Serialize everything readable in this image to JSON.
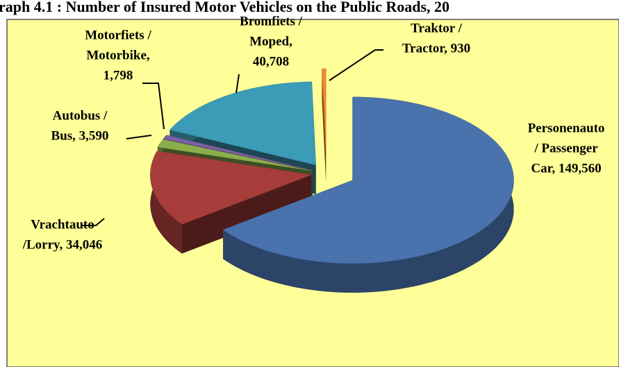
{
  "chart_data": {
    "type": "pie3d",
    "title": "raph 4.1 : Number of Insured Motor Vehicles on the Public Roads, 20",
    "labels": [
      [
        "Personenauto",
        "/ Passenger",
        "Car, 149,560"
      ],
      [
        "Vrachtauto",
        "/Lorry, 34,046"
      ],
      [
        "Autobus /",
        "Bus, 3,590"
      ],
      [
        "Motorfiets /",
        "Motorbike,",
        "1,798"
      ],
      [
        "Bromfiets /",
        "Moped,",
        "40,708"
      ],
      [
        "Traktor /",
        "Tractor, 930"
      ]
    ],
    "values": [
      149560,
      34046,
      3590,
      1798,
      40708,
      930
    ],
    "colors": [
      "#4a72ad",
      "#a63d3a",
      "#8aae4c",
      "#7d5fa3",
      "#3c9bb6",
      "#f08a2e"
    ],
    "background": "#ffff99"
  }
}
